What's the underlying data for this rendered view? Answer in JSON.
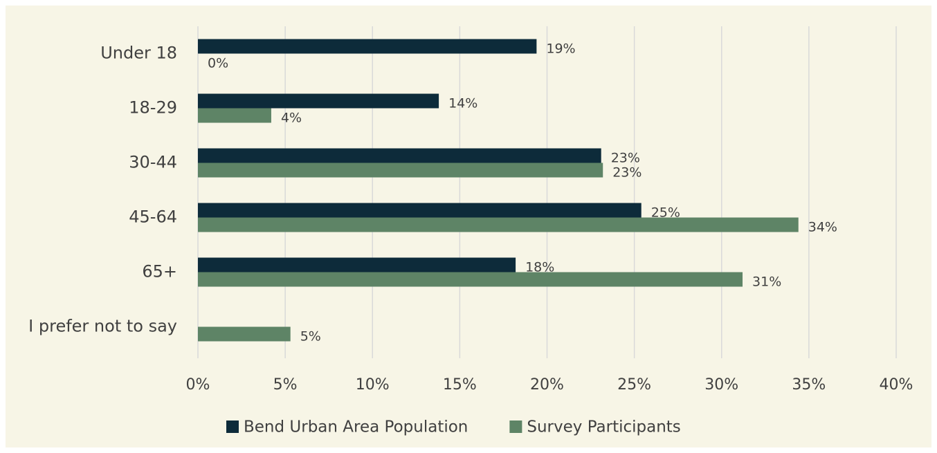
{
  "chart_data": {
    "type": "bar",
    "orientation": "horizontal",
    "categories": [
      "Under 18",
      "18-29",
      "30-44",
      "45-64",
      "65+",
      "I prefer not to say"
    ],
    "series": [
      {
        "name": "Bend Urban Area Population",
        "color": "#0d2b3a",
        "values": [
          19.4,
          13.8,
          23.1,
          25.4,
          18.2,
          null
        ],
        "value_labels": [
          "19%",
          "14%",
          "23%",
          "25%",
          "18%",
          null
        ]
      },
      {
        "name": "Survey Participants",
        "color": "#5e8466",
        "values": [
          0,
          4.2,
          23.2,
          34.4,
          31.2,
          5.3
        ],
        "value_labels": [
          "0%",
          "4%",
          "23%",
          "34%",
          "31%",
          "5%"
        ]
      }
    ],
    "xlim": [
      0,
      40
    ],
    "xticks": [
      {
        "value": 0,
        "label": "0%"
      },
      {
        "value": 5,
        "label": "5%"
      },
      {
        "value": 10,
        "label": "10%"
      },
      {
        "value": 15,
        "label": "15%"
      },
      {
        "value": 20,
        "label": "20%"
      },
      {
        "value": 25,
        "label": "25%"
      },
      {
        "value": 30,
        "label": "30%"
      },
      {
        "value": 35,
        "label": "35%"
      },
      {
        "value": 40,
        "label": "40%"
      }
    ],
    "grid": true,
    "legend": "bottom"
  }
}
